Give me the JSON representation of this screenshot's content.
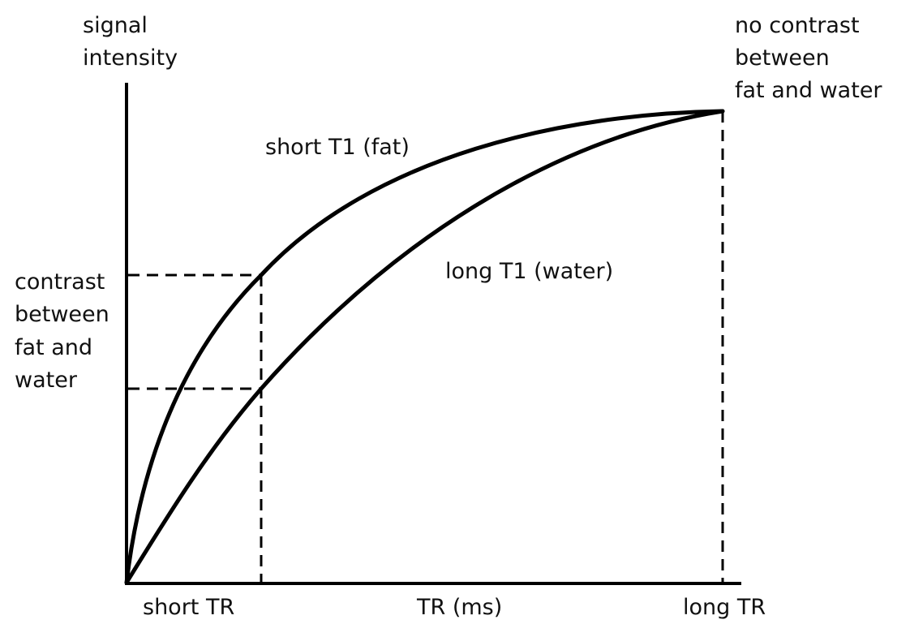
{
  "y_axis_label": [
    "signal",
    "intensity"
  ],
  "x_axis_label": "TR (ms)",
  "x_ticks": {
    "short": "short TR",
    "long": "long TR"
  },
  "curves": {
    "fat": "short T1 (fat)",
    "water": "long T1 (water)"
  },
  "annotations": {
    "contrast": [
      "contrast",
      "between",
      "fat and",
      "water"
    ],
    "no_contrast": [
      "no contrast",
      "between",
      "fat and water"
    ]
  },
  "chart_data": {
    "type": "line",
    "series": [
      {
        "name": "short T1 (fat)"
      },
      {
        "name": "long T1 (water)"
      }
    ]
  }
}
